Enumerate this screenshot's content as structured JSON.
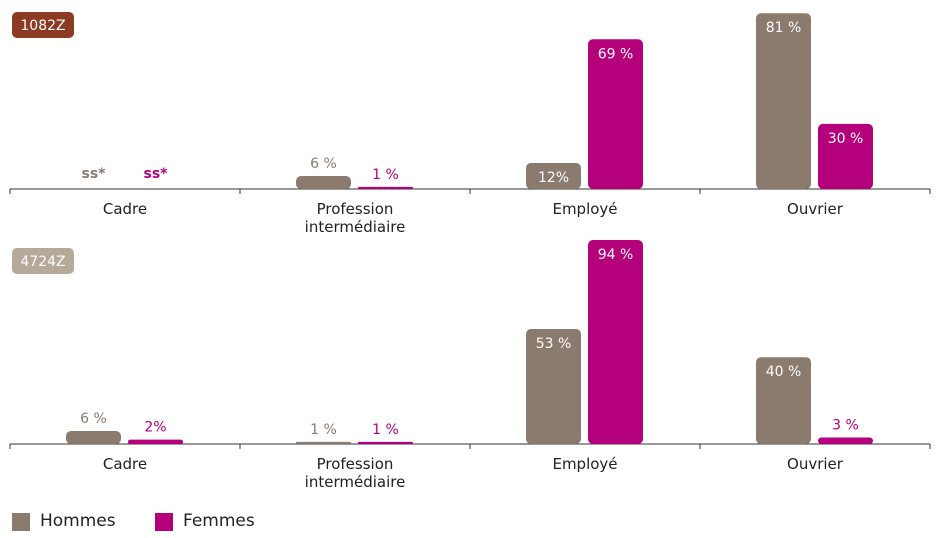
{
  "chart_data": [
    {
      "type": "bar",
      "title": "1082Z",
      "badge_color": "#8c3a22",
      "categories": [
        "Cadre",
        "Profession intermédiaire",
        "Employé",
        "Ouvrier"
      ],
      "series": [
        {
          "name": "Hommes",
          "color": "#8b7a6e",
          "values": [
            null,
            6,
            12,
            81
          ],
          "value_labels": [
            "ss*",
            "6 %",
            "12%",
            "81 %"
          ]
        },
        {
          "name": "Femmes",
          "color": "#b5007b",
          "values": [
            null,
            1,
            69,
            30
          ],
          "value_labels": [
            "ss*",
            "1 %",
            "69 %",
            "30 %"
          ]
        }
      ]
    },
    {
      "type": "bar",
      "title": "4724Z",
      "badge_color": "#b6a99a",
      "categories": [
        "Cadre",
        "Profession intermédiaire",
        "Employé",
        "Ouvrier"
      ],
      "series": [
        {
          "name": "Hommes",
          "color": "#8b7a6e",
          "values": [
            6,
            1,
            53,
            40
          ],
          "value_labels": [
            "6 %",
            "1 %",
            "53 %",
            "40 %"
          ]
        },
        {
          "name": "Femmes",
          "color": "#b5007b",
          "values": [
            2,
            1,
            94,
            3
          ],
          "value_labels": [
            "2%",
            "1 %",
            "94 %",
            "3 %"
          ]
        }
      ]
    }
  ]
}
